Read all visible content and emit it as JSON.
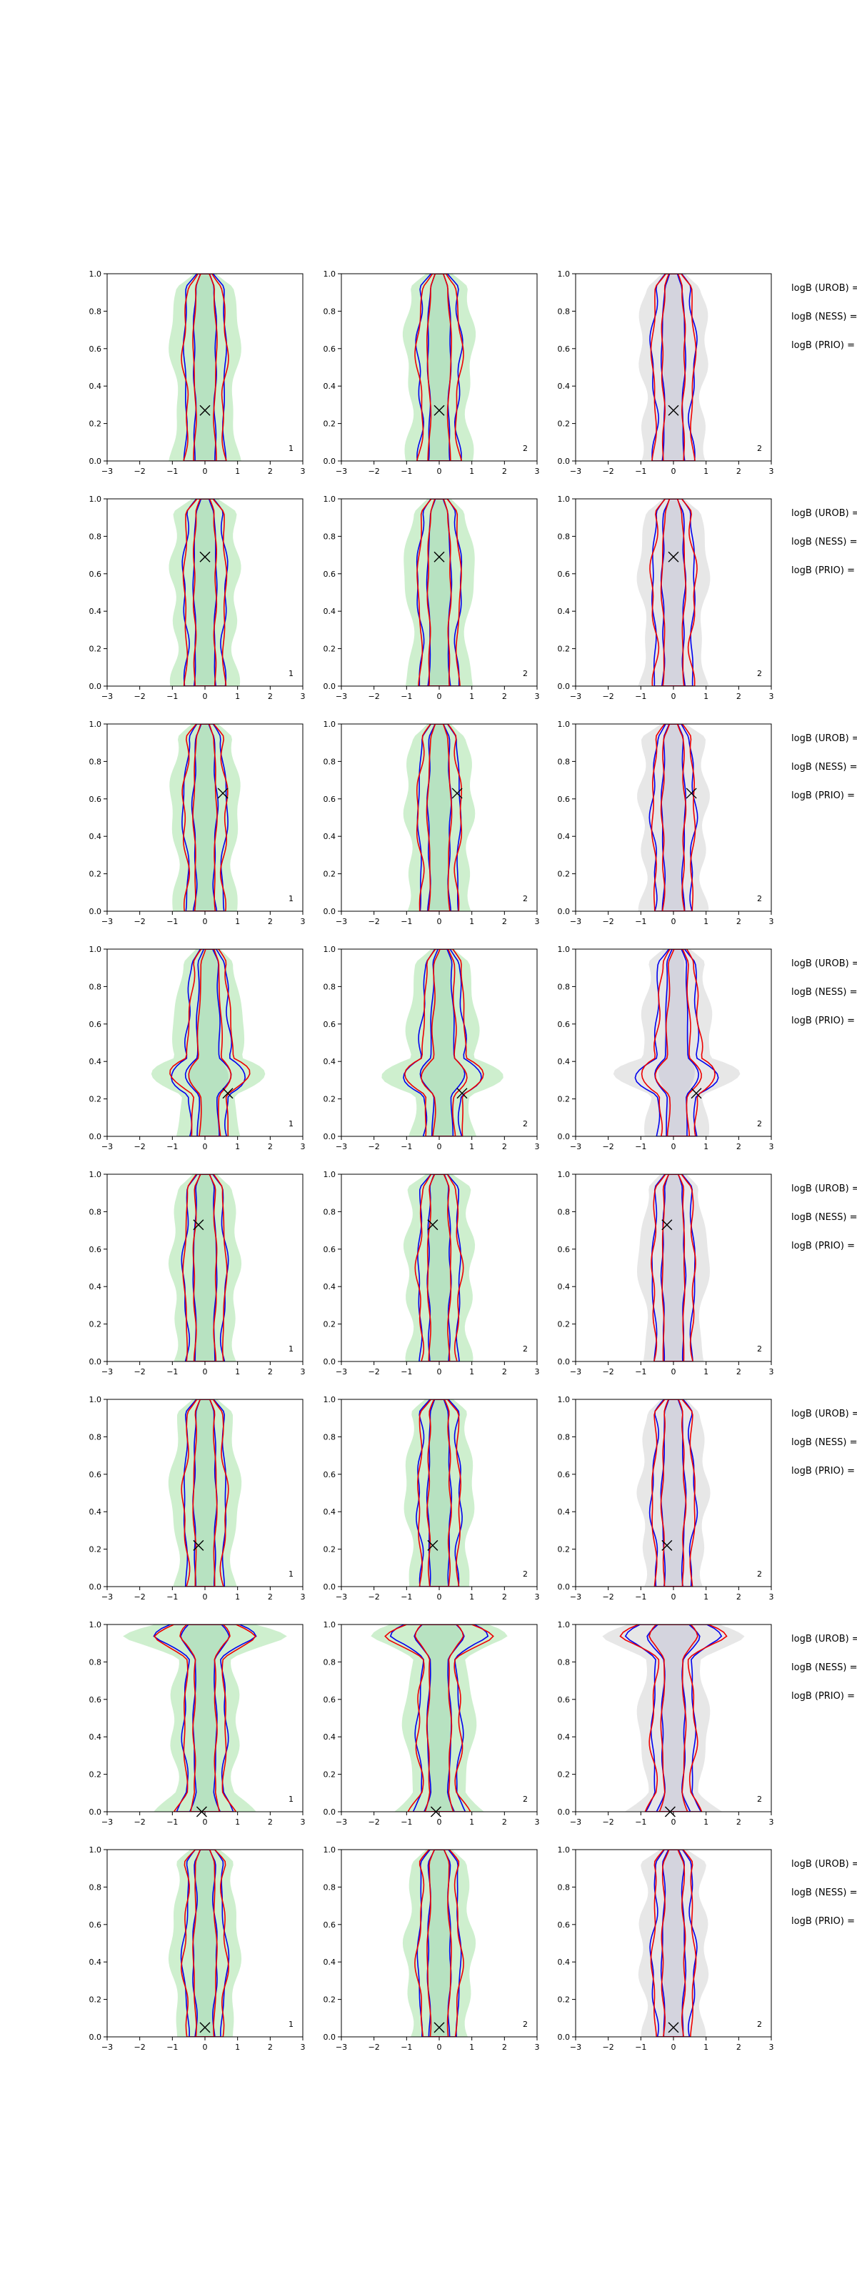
{
  "figure": {
    "panel_corner_labels": [
      "1",
      "2",
      "2"
    ],
    "logB_labels": [
      "logB (UROB) =",
      "logB (NESS) =",
      "logB (PRIO) ="
    ],
    "colors": {
      "green_fill": "#c6ecc6",
      "grey_fill": "#e3e3e3",
      "blue": "#0000ee",
      "red": "#ee0000",
      "marker": "#000000"
    }
  },
  "chart_data": {
    "type": "contour",
    "layout": "8 rows x 3 columns of panels",
    "xlim": [
      -3,
      3
    ],
    "ylim": [
      0.0,
      1.0
    ],
    "x_ticks": [
      "−3",
      "−2",
      "−1",
      "0",
      "1",
      "2",
      "3"
    ],
    "y_ticks": [
      "0.0",
      "0.2",
      "0.4",
      "0.6",
      "0.8",
      "1.0"
    ],
    "xlabel": "",
    "ylabel": "",
    "grid": false,
    "true_value_markers": [
      {
        "row": 1,
        "x": 0.0,
        "y": 0.27
      },
      {
        "row": 2,
        "x": 0.0,
        "y": 0.69
      },
      {
        "row": 3,
        "x": 0.55,
        "y": 0.63
      },
      {
        "row": 4,
        "x": 0.7,
        "y": 0.23
      },
      {
        "row": 5,
        "x": -0.2,
        "y": 0.73
      },
      {
        "row": 6,
        "x": -0.2,
        "y": 0.22
      },
      {
        "row": 7,
        "x": -0.1,
        "y": 0.0
      },
      {
        "row": 8,
        "x": 0.0,
        "y": 0.05
      }
    ]
  }
}
